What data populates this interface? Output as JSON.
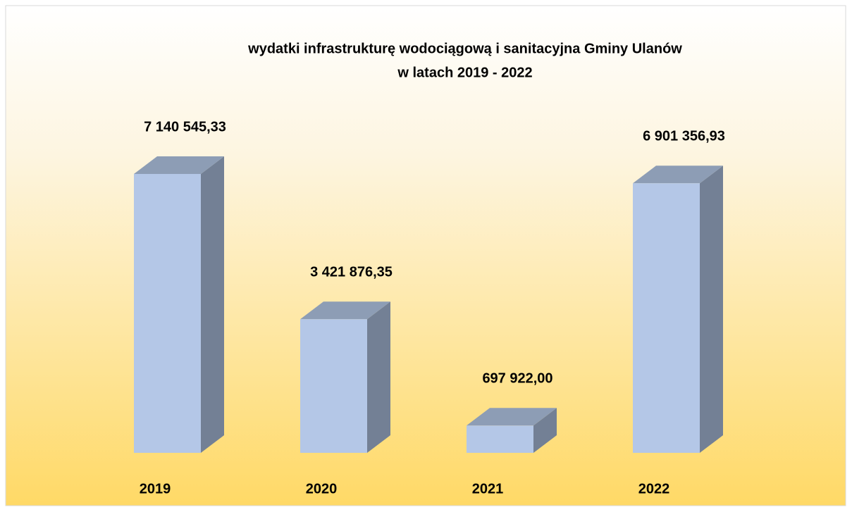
{
  "chart_data": {
    "type": "bar3d",
    "title": [
      "wydatki infrastrukturę wodociągową i sanitacyjna Gminy Ulanów",
      "w latach 2019 - 2022"
    ],
    "categories": [
      "2019",
      "2020",
      "2021",
      "2022"
    ],
    "values": [
      7140545.33,
      3421876.35,
      697922.0,
      6901356.93
    ],
    "value_labels": [
      "7 140 545,33",
      "3 421 876,35",
      "697 922,00",
      "6 901 356,93"
    ],
    "color": "#b4c7e7"
  }
}
